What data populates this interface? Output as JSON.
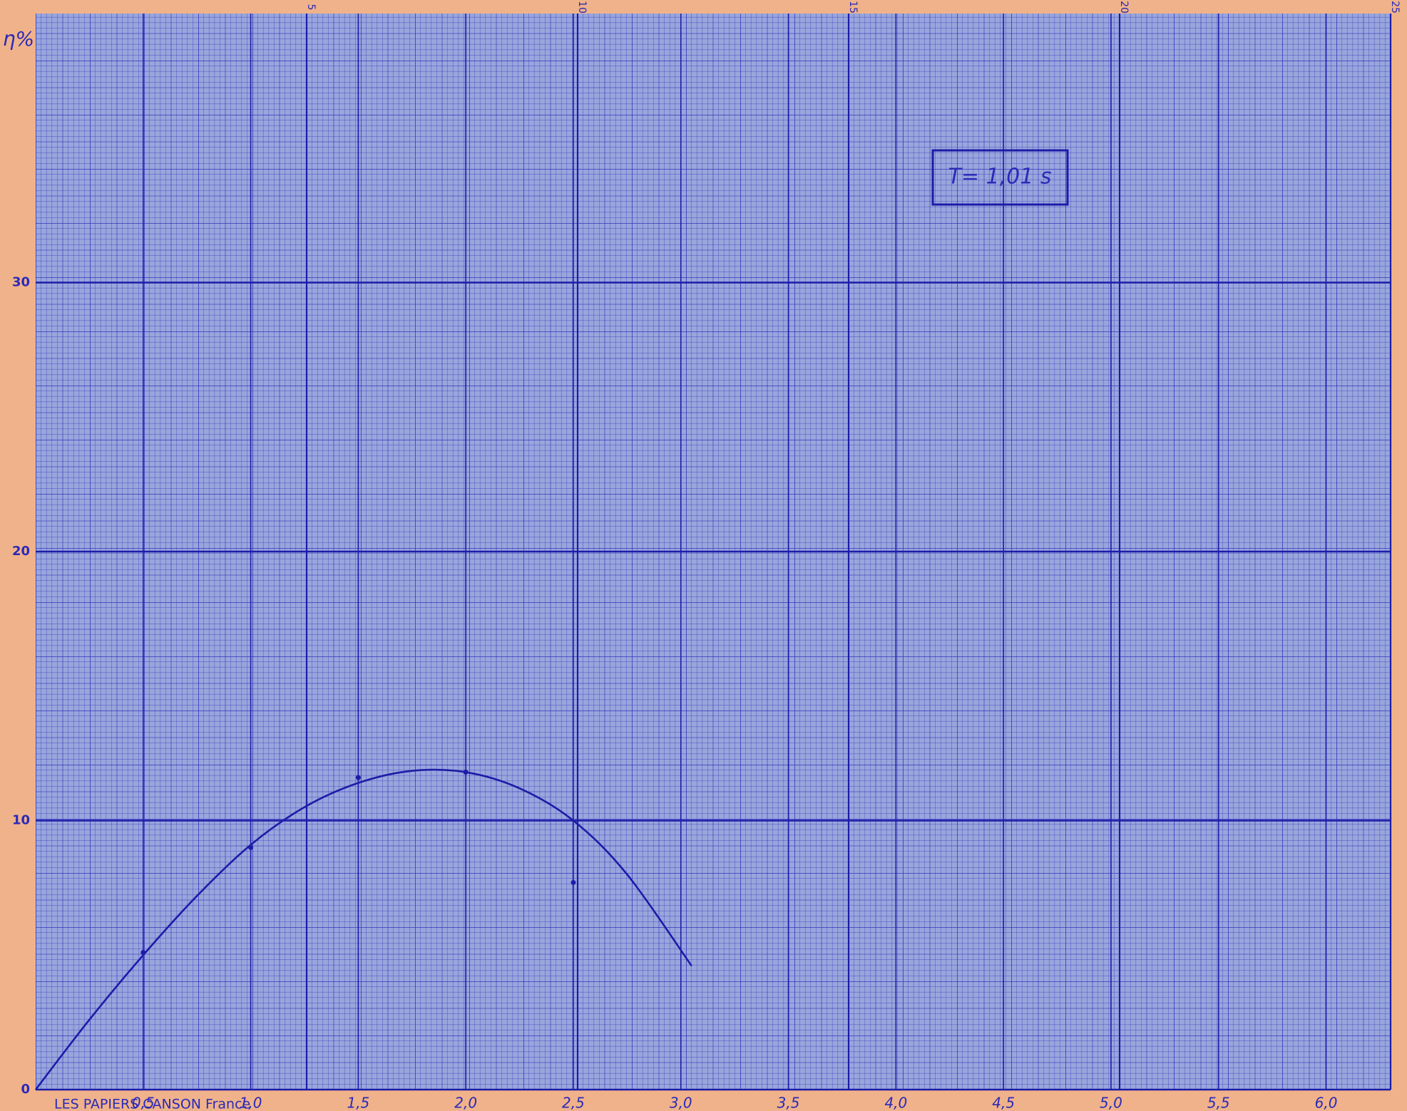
{
  "chart_data": {
    "type": "line",
    "y_label": "η%",
    "annotation": "T= 1,01 s",
    "paper_imprint": "LES PAPIERS CANSON France",
    "color": "#1c1ca8",
    "x": [
      0.5,
      1.0,
      1.5,
      2.0,
      2.5
    ],
    "values": [
      5.1,
      9.0,
      11.6,
      11.8,
      7.7
    ],
    "curve": {
      "x": [
        0,
        0.25,
        0.5,
        0.75,
        1.0,
        1.25,
        1.5,
        1.75,
        2.0,
        2.25,
        2.5,
        2.75,
        3.05
      ],
      "values": [
        0,
        2.6,
        5.0,
        7.2,
        9.1,
        10.5,
        11.4,
        11.85,
        11.8,
        11.2,
        10.0,
        8.0,
        4.6
      ]
    },
    "xlim": [
      0,
      6.3
    ],
    "ylim": [
      0,
      40
    ],
    "xticks": [
      {
        "value": 0.5,
        "label": "0,5"
      },
      {
        "value": 1.0,
        "label": "1,0"
      },
      {
        "value": 1.5,
        "label": "1,5"
      },
      {
        "value": 2.0,
        "label": "2,0"
      },
      {
        "value": 2.5,
        "label": "2,5"
      },
      {
        "value": 3.0,
        "label": "3,0"
      },
      {
        "value": 3.5,
        "label": "3,5"
      },
      {
        "value": 4.0,
        "label": "4,0"
      },
      {
        "value": 4.5,
        "label": "4,5"
      },
      {
        "value": 5.0,
        "label": "5,0"
      },
      {
        "value": 5.5,
        "label": "5,5"
      },
      {
        "value": 6.0,
        "label": "6,0"
      }
    ],
    "yticks": [
      0,
      10,
      20,
      30
    ],
    "x2lim": [
      0,
      25
    ],
    "x2ticks": [
      5,
      10,
      15,
      20,
      25
    ],
    "grid": true
  }
}
